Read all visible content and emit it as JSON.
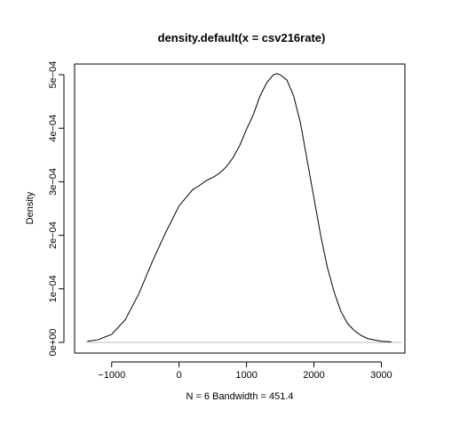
{
  "chart_data": {
    "type": "line",
    "title": "density.default(x = csv216rate)",
    "xlabel": "N = 6   Bandwidth = 451.4",
    "ylabel": "Density",
    "xlim": [
      -1550,
      3350
    ],
    "ylim": [
      -2e-05,
      0.00052
    ],
    "x_ticks": [
      -1000,
      0,
      1000,
      2000,
      3000
    ],
    "x_tick_labels": [
      "−1000",
      "0",
      "1000",
      "2000",
      "3000"
    ],
    "y_ticks": [
      0,
      0.0001,
      0.0002,
      0.0003,
      0.0004,
      0.0005
    ],
    "y_tick_labels": [
      "0e+00",
      "1e−04",
      "2e−04",
      "3e−04",
      "4e−04",
      "5e−04"
    ],
    "grid": false,
    "baseline": {
      "y": 0,
      "color": "#bebebe"
    },
    "series": [
      {
        "color": "#000000",
        "x": [
          -1360,
          -1200,
          -1000,
          -800,
          -600,
          -400,
          -200,
          0,
          100,
          200,
          300,
          400,
          500,
          600,
          700,
          800,
          900,
          1000,
          1100,
          1200,
          1300,
          1400,
          1450,
          1500,
          1600,
          1700,
          1800,
          1900,
          2000,
          2100,
          2200,
          2300,
          2400,
          2500,
          2600,
          2700,
          2800,
          3000,
          3150
        ],
        "y": [
          2e-06,
          5e-06,
          1.5e-05,
          4.2e-05,
          9e-05,
          0.00015,
          0.000205,
          0.000255,
          0.00027,
          0.000285,
          0.000293,
          0.000302,
          0.000308,
          0.000316,
          0.000328,
          0.000345,
          0.000368,
          0.000398,
          0.000425,
          0.00046,
          0.000485,
          0.0005,
          0.000502,
          0.0005,
          0.00049,
          0.00046,
          0.00041,
          0.00034,
          0.00027,
          0.0002,
          0.00014,
          9.4e-05,
          5.8e-05,
          3.5e-05,
          2.2e-05,
          1.3e-05,
          7e-06,
          2e-06,
          1e-06
        ]
      }
    ]
  }
}
